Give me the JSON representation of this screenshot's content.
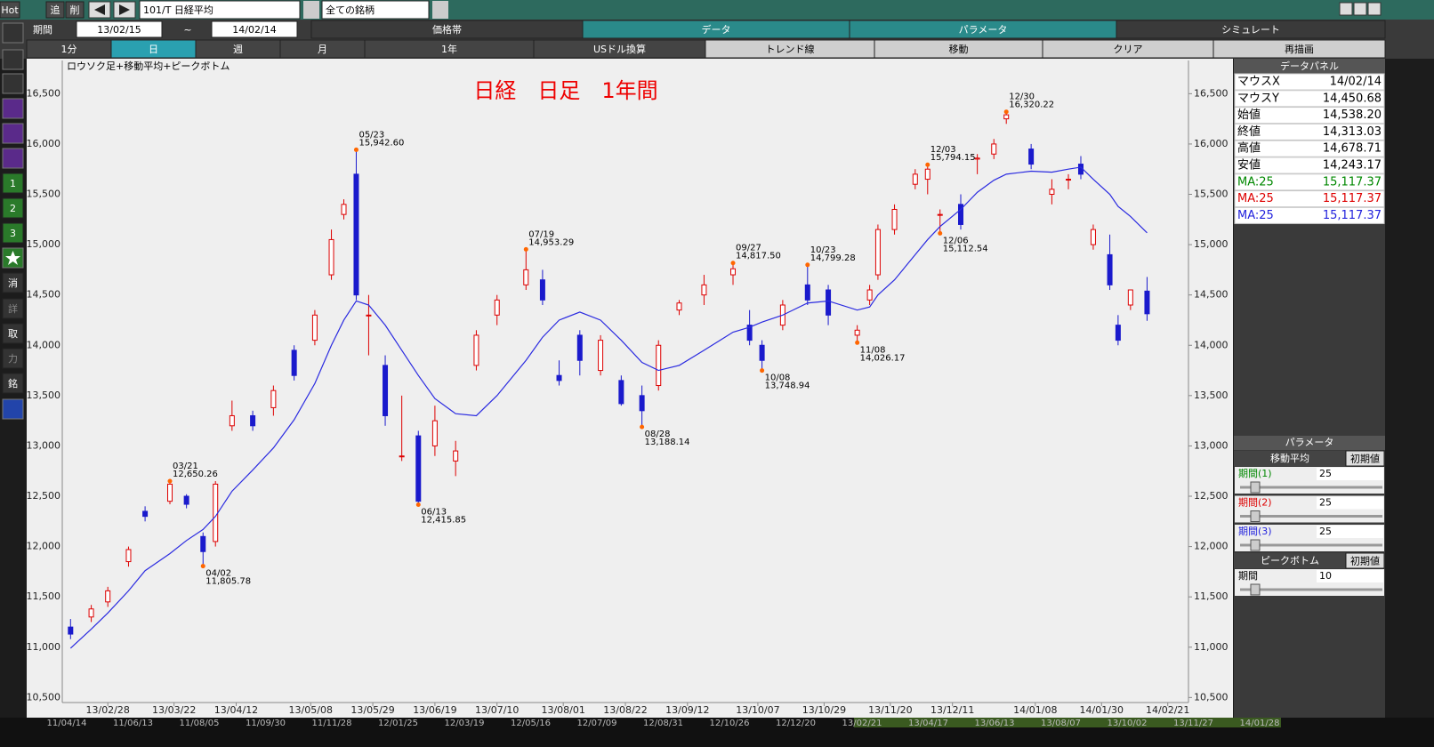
{
  "toolbar": {
    "hot": "Hot",
    "add": "追",
    "delete": "削",
    "symbol": "101/T 日経平均",
    "filter": "全ての銘柄"
  },
  "period": {
    "label": "期間",
    "from": "13/02/15",
    "separator": "~",
    "to": "14/02/14"
  },
  "main_tabs": [
    "価格帯",
    "データ",
    "パラメータ",
    "シミュレート"
  ],
  "sub_tabs": [
    "1分",
    "日",
    "週",
    "月",
    "1年",
    "USドル換算",
    "トレンド線",
    "移動",
    "クリア",
    "再描画"
  ],
  "side_buttons": [
    "1",
    "2",
    "3",
    "消",
    "詳",
    "取",
    "力",
    "銘"
  ],
  "data_panel": {
    "title": "データパネル",
    "rows": [
      [
        "マウスX",
        "14/02/14"
      ],
      [
        "マウスY",
        "14,450.68"
      ],
      [
        "始値",
        "14,538.20"
      ],
      [
        "終値",
        "14,313.03"
      ],
      [
        "高値",
        "14,678.71"
      ],
      [
        "安値",
        "14,243.17"
      ],
      [
        "MA:25",
        "15,117.37"
      ],
      [
        "MA:25",
        "15,117.37"
      ],
      [
        "MA:25",
        "15,117.37"
      ]
    ],
    "ma_colors": [
      "#008800",
      "#dd0000",
      "#2222dd"
    ]
  },
  "parameter_panel": {
    "title": "パラメータ",
    "moving_average": "移動平均",
    "reset": "初期値",
    "rows": [
      [
        "期間(1)",
        "25"
      ],
      [
        "期間(2)",
        "25"
      ],
      [
        "期間(3)",
        "25"
      ]
    ],
    "peak_bottom": "ピークボトム",
    "peak_reset": "初期値",
    "peak_row": [
      "期間",
      "10"
    ]
  },
  "scroll_dates": [
    "11/04/14",
    "11/06/13",
    "11/08/05",
    "11/09/30",
    "11/11/28",
    "12/01/25",
    "12/03/19",
    "12/05/16",
    "12/07/09",
    "12/08/31",
    "12/10/26",
    "12/12/20",
    "13/02/21",
    "13/04/17",
    "13/06/13",
    "13/08/07",
    "13/10/02",
    "13/11/27",
    "14/01/28"
  ],
  "chart_data": {
    "type": "candlestick",
    "title": "日経　日足　1年間",
    "subtitle": "ロウソク足+移動平均+ピークボトム",
    "x": [
      "13/02/15",
      "13/02/22",
      "13/02/28",
      "13/03/07",
      "13/03/13",
      "13/03/21",
      "13/03/27",
      "13/04/02",
      "13/04/05",
      "13/04/11",
      "13/04/18",
      "13/04/25",
      "13/05/02",
      "13/05/09",
      "13/05/15",
      "13/05/20",
      "13/05/23",
      "13/05/28",
      "13/06/03",
      "13/06/07",
      "13/06/13",
      "13/06/19",
      "13/06/26",
      "13/07/03",
      "13/07/10",
      "13/07/19",
      "13/07/25",
      "13/07/31",
      "13/08/07",
      "13/08/14",
      "13/08/21",
      "13/08/28",
      "13/09/03",
      "13/09/10",
      "13/09/18",
      "13/09/27",
      "13/10/03",
      "13/10/08",
      "13/10/15",
      "13/10/23",
      "13/10/30",
      "13/11/08",
      "13/11/13",
      "13/11/15",
      "13/11/21",
      "13/11/28",
      "13/12/03",
      "13/12/06",
      "13/12/13",
      "13/12/19",
      "13/12/25",
      "13/12/30",
      "14/01/07",
      "14/01/14",
      "14/01/20",
      "14/01/23",
      "14/01/28",
      "14/02/03",
      "14/02/05",
      "14/02/10",
      "14/02/14"
    ],
    "open": [
      11200,
      11300,
      11450,
      11850,
      12350,
      12450,
      12500,
      12100,
      12050,
      13200,
      13300,
      13380,
      13950,
      14050,
      14700,
      15300,
      15700,
      14300,
      13800,
      12900,
      13100,
      13000,
      12850,
      13800,
      14300,
      14600,
      14650,
      13700,
      14100,
      13750,
      13650,
      13500,
      13600,
      14350,
      14500,
      14700,
      14200,
      14000,
      14200,
      14600,
      14550,
      14100,
      14450,
      14700,
      15150,
      15600,
      15650,
      15300,
      15400,
      15850,
      15900,
      16250,
      15950,
      15500,
      15650,
      15800,
      15000,
      14900,
      14200,
      14400,
      14538.2
    ],
    "high": [
      11280,
      11420,
      11600,
      12000,
      12400,
      12650.26,
      12520,
      12140,
      12650,
      13450,
      13350,
      13600,
      14000,
      14350,
      15150,
      15450,
      15942.6,
      14500,
      13900,
      13500,
      13150,
      13400,
      13050,
      14150,
      14500,
      14953.29,
      14750,
      13850,
      14150,
      14100,
      13700,
      13600,
      14050,
      14450,
      14700,
      14817.5,
      14350,
      14050,
      14450,
      14799.28,
      14600,
      14200,
      14600,
      15200,
      15400,
      15750,
      15794.15,
      15350,
      15500,
      15900,
      16050,
      16320.22,
      16000,
      15650,
      15700,
      15880,
      15200,
      15100,
      14300,
      14550,
      14678.71
    ],
    "low": [
      11080,
      11250,
      11400,
      11800,
      12250,
      12420,
      12380,
      11805.78,
      12000,
      13150,
      13150,
      13300,
      13650,
      14000,
      14650,
      15250,
      14450,
      13900,
      13200,
      12850,
      12415.85,
      12900,
      12700,
      13750,
      14200,
      14550,
      14400,
      13600,
      13700,
      13700,
      13400,
      13188.14,
      13550,
      14300,
      14400,
      14600,
      14000,
      13748.94,
      14150,
      14400,
      14200,
      14026.17,
      14400,
      14650,
      15100,
      15550,
      15500,
      15112.54,
      15150,
      15700,
      15850,
      16200,
      15750,
      15400,
      15550,
      15650,
      14950,
      14550,
      14000,
      14350,
      14243.17
    ],
    "close": [
      11130,
      11380,
      11560,
      11970,
      12300,
      12620,
      12420,
      11950,
      12620,
      13300,
      13200,
      13550,
      13700,
      14300,
      15050,
      15400,
      14500,
      14300,
      13300,
      12900,
      12450,
      13250,
      12950,
      14100,
      14450,
      14750,
      14450,
      13650,
      13850,
      14050,
      13420,
      13350,
      14000,
      14420,
      14600,
      14760,
      14050,
      13850,
      14400,
      14450,
      14300,
      14150,
      14550,
      15150,
      15350,
      15700,
      15750,
      15300,
      15200,
      15860,
      16000,
      16290,
      15800,
      15550,
      15650,
      15700,
      15150,
      14600,
      14050,
      14550,
      14313.03
    ],
    "up_color": "#dd0000",
    "down_color": "#1a1acc",
    "ma": {
      "color": "#2a2ae0",
      "values": [
        10990,
        11180,
        11340,
        11560,
        11760,
        11930,
        12060,
        12170,
        12300,
        12550,
        12760,
        12980,
        13260,
        13620,
        14000,
        14250,
        14440,
        14400,
        14200,
        13950,
        13700,
        13470,
        13320,
        13300,
        13500,
        13850,
        14080,
        14250,
        14330,
        14250,
        14050,
        13830,
        13750,
        13800,
        13950,
        14130,
        14180,
        14230,
        14300,
        14420,
        14440,
        14350,
        14380,
        14500,
        14650,
        14900,
        15050,
        15180,
        15350,
        15520,
        15640,
        15700,
        15730,
        15720,
        15750,
        15770,
        15650,
        15500,
        15380,
        15280,
        15117.37
      ]
    },
    "peaks": {
      "color": "#ff6600",
      "dates": [
        "03/21",
        "04/02",
        "05/23",
        "06/13",
        "07/19",
        "08/28",
        "09/27",
        "10/08",
        "10/23",
        "11/08",
        "12/03",
        "12/06",
        "12/30"
      ],
      "values": [
        12650.26,
        11805.78,
        15942.6,
        12415.85,
        14953.29,
        13188.14,
        14817.5,
        13748.94,
        14799.28,
        14026.17,
        15794.15,
        15112.54,
        16320.22
      ],
      "value_labels": [
        "12,650.26",
        "11,805.78",
        "15,942.60",
        "12,415.85",
        "14,953.29",
        "13,188.14",
        "14,817.50",
        "13,748.94",
        "14,799.28",
        "14,026.17",
        "15,794.15",
        "15,112.54",
        "16,320.22"
      ]
    },
    "xlim": [
      "13/02/13",
      "14/02/28"
    ],
    "xticks": [
      "13/02/28",
      "13/03/22",
      "13/04/12",
      "13/05/08",
      "13/05/29",
      "13/06/19",
      "13/07/10",
      "13/08/01",
      "13/08/22",
      "13/09/12",
      "13/10/07",
      "13/10/29",
      "13/11/20",
      "13/12/11",
      "14/01/08",
      "14/01/30",
      "14/02/21"
    ],
    "ylim": [
      10450,
      16830
    ],
    "yticks": [
      {
        "value": 10500,
        "label": "10,500"
      },
      {
        "value": 11000,
        "label": "11,000"
      },
      {
        "value": 11500,
        "label": "11,500"
      },
      {
        "value": 12000,
        "label": "12,000"
      },
      {
        "value": 12500,
        "label": "12,500"
      },
      {
        "value": 13000,
        "label": "13,000"
      },
      {
        "value": 13500,
        "label": "13,500"
      },
      {
        "value": 14000,
        "label": "14,000"
      },
      {
        "value": 14500,
        "label": "14,500"
      },
      {
        "value": 15000,
        "label": "15,000"
      },
      {
        "value": 15500,
        "label": "15,500"
      },
      {
        "value": 16000,
        "label": "16,000"
      },
      {
        "value": 16500,
        "label": "16,500"
      }
    ]
  }
}
